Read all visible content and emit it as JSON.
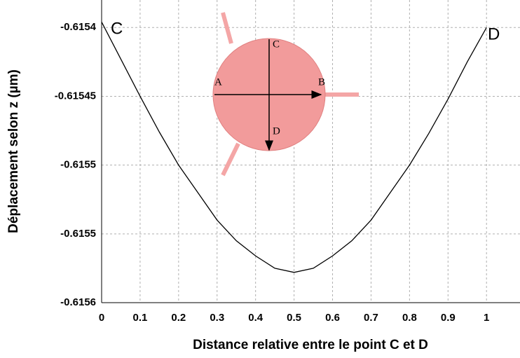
{
  "chart_data": {
    "type": "line",
    "xlabel": "Distance relative entre le point C et D",
    "ylabel": "Déplacement selon z (µm)",
    "x": [
      0,
      0.05,
      0.1,
      0.15,
      0.2,
      0.25,
      0.3,
      0.35,
      0.4,
      0.45,
      0.5,
      0.55,
      0.6,
      0.65,
      0.7,
      0.75,
      0.8,
      0.85,
      0.9,
      0.95,
      1
    ],
    "series": [
      {
        "color": "#000000",
        "values": [
          -0.615396,
          -0.615423,
          -0.61545,
          -0.615476,
          -0.6155,
          -0.61552,
          -0.61554,
          -0.615555,
          -0.615566,
          -0.615575,
          -0.615578,
          -0.615575,
          -0.615566,
          -0.615555,
          -0.61554,
          -0.61552,
          -0.6155,
          -0.615477,
          -0.615452,
          -0.615425,
          -0.6154
        ]
      }
    ],
    "xlim": [
      0,
      1.087
    ],
    "ylim": [
      -0.6156,
      -0.61538
    ],
    "xticks": [
      0,
      0.1,
      0.2,
      0.3,
      0.4,
      0.5,
      0.6,
      0.7,
      0.8,
      0.9,
      1
    ],
    "yticks": [
      -0.6154,
      -0.61545,
      -0.6155,
      {
        "value": -0.61555,
        "label": "-0.6155"
      },
      -0.6156
    ],
    "grid": true,
    "annotations": [
      "C",
      "D"
    ],
    "inset_labels": [
      "A",
      "B",
      "C",
      "D"
    ]
  }
}
